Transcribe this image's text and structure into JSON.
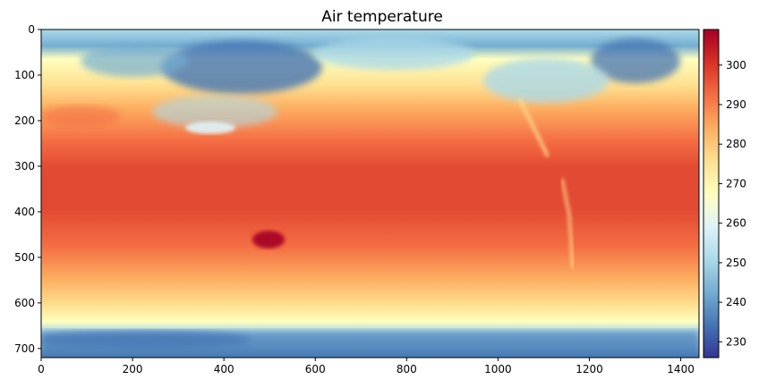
{
  "chart_data": {
    "type": "heatmap",
    "title": "Air temperature",
    "xlabel": "",
    "ylabel": "",
    "xlim": [
      0,
      1440
    ],
    "ylim": [
      720,
      0
    ],
    "x_ticks": [
      0,
      200,
      400,
      600,
      800,
      1000,
      1200,
      1400
    ],
    "y_ticks": [
      0,
      100,
      200,
      300,
      400,
      500,
      600,
      700
    ],
    "colorbar": {
      "range": [
        226,
        309
      ],
      "ticks": [
        230,
        240,
        250,
        260,
        270,
        280,
        290,
        300
      ],
      "colormap": "RdYlBu_r",
      "colors": [
        "#313695",
        "#4575b4",
        "#74add1",
        "#abd9e9",
        "#e0f3f8",
        "#ffffbf",
        "#fee090",
        "#fdae61",
        "#f46d43",
        "#d73027",
        "#a50026"
      ]
    },
    "grid": false,
    "legend": "colorbar-right"
  }
}
